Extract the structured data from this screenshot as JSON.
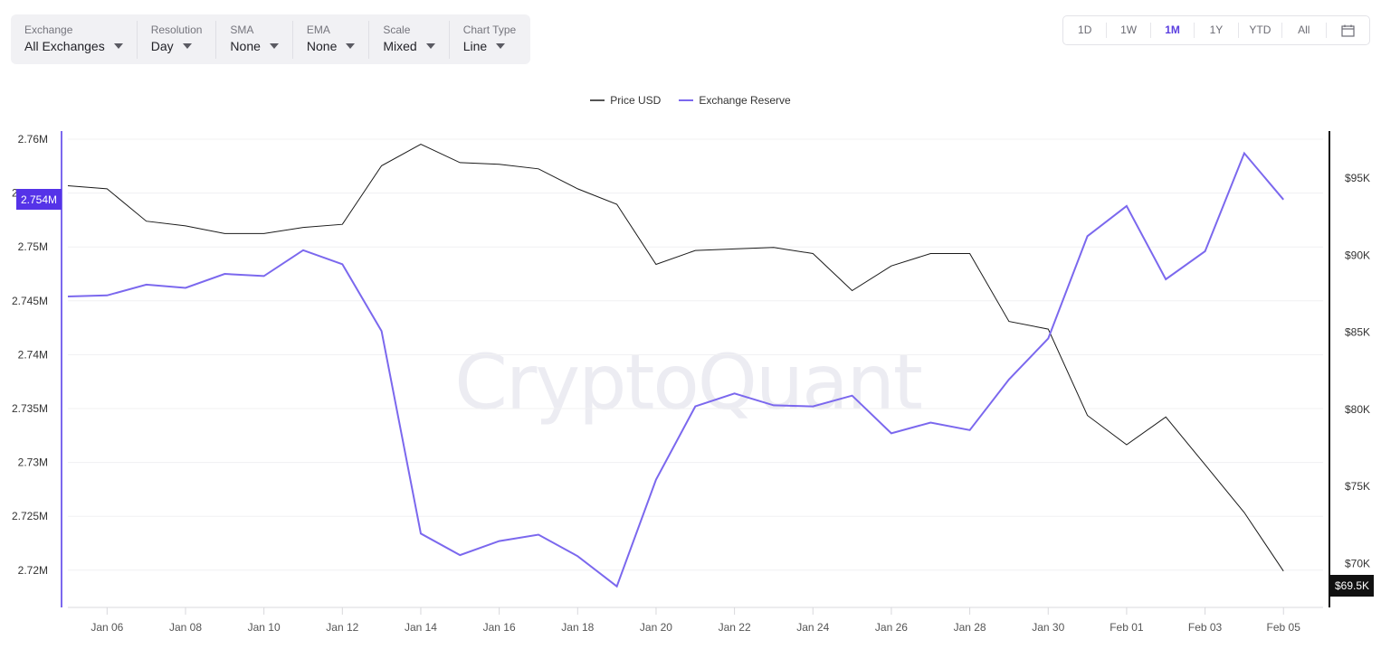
{
  "toolbar": {
    "filters": [
      {
        "label": "Exchange",
        "value": "All Exchanges"
      },
      {
        "label": "Resolution",
        "value": "Day"
      },
      {
        "label": "SMA",
        "value": "None"
      },
      {
        "label": "EMA",
        "value": "None"
      },
      {
        "label": "Scale",
        "value": "Mixed"
      },
      {
        "label": "Chart Type",
        "value": "Line"
      }
    ]
  },
  "range": {
    "options": [
      "1D",
      "1W",
      "1M",
      "1Y",
      "YTD",
      "All"
    ],
    "active": "1M",
    "calendar_icon": "calendar-icon"
  },
  "legend": {
    "price": "Price USD",
    "reserve": "Exchange Reserve"
  },
  "watermark": "CryptoQuant",
  "colors": {
    "reserve": "#7b68ee",
    "price": "#1a1a1a",
    "active_accent": "#5b3fe0",
    "reserve_badge": "#5533e8",
    "price_badge": "#111111"
  },
  "badges": {
    "reserve_current": "2.754M",
    "price_current": "$69.5K"
  },
  "chart_data": {
    "type": "line",
    "title": "",
    "legend_position": "top-center",
    "grid": true,
    "x": [
      "Jan 05",
      "Jan 06",
      "Jan 07",
      "Jan 08",
      "Jan 09",
      "Jan 10",
      "Jan 11",
      "Jan 12",
      "Jan 13",
      "Jan 14",
      "Jan 15",
      "Jan 16",
      "Jan 17",
      "Jan 18",
      "Jan 19",
      "Jan 20",
      "Jan 21",
      "Jan 22",
      "Jan 23",
      "Jan 24",
      "Jan 25",
      "Jan 26",
      "Jan 27",
      "Jan 28",
      "Jan 29",
      "Jan 30",
      "Jan 31",
      "Feb 01",
      "Feb 02",
      "Feb 03",
      "Feb 04",
      "Feb 05"
    ],
    "x_ticks": [
      "Jan 06",
      "Jan 08",
      "Jan 10",
      "Jan 12",
      "Jan 14",
      "Jan 16",
      "Jan 18",
      "Jan 20",
      "Jan 22",
      "Jan 24",
      "Jan 26",
      "Jan 28",
      "Jan 30",
      "Feb 01",
      "Feb 03",
      "Feb 05"
    ],
    "y_left": {
      "label": "Exchange Reserve",
      "ticks": [
        "2.76M",
        "2.755M",
        "2.75M",
        "2.745M",
        "2.74M",
        "2.735M",
        "2.73M",
        "2.725M",
        "2.72M"
      ],
      "range": [
        2.7166,
        2.76
      ]
    },
    "y_right": {
      "label": "Price USD",
      "ticks": [
        "$95K",
        "$90K",
        "$85K",
        "$80K",
        "$75K",
        "$70K"
      ],
      "range": [
        69.5,
        97.5
      ]
    },
    "series": [
      {
        "name": "Exchange Reserve",
        "axis": "left",
        "unit": "M BTC",
        "values": [
          2.7454,
          2.7455,
          2.7465,
          2.7462,
          2.7475,
          2.7473,
          2.7497,
          2.7484,
          2.7422,
          2.7234,
          2.7214,
          2.7227,
          2.7233,
          2.7213,
          2.7185,
          2.7284,
          2.7352,
          2.7364,
          2.7353,
          2.7352,
          2.7362,
          2.7327,
          2.7337,
          2.733,
          2.7377,
          2.7415,
          2.751,
          2.7538,
          2.747,
          2.7496,
          2.7587,
          2.7544
        ]
      },
      {
        "name": "Price USD",
        "axis": "right",
        "unit": "K USD",
        "values": [
          94.5,
          94.3,
          92.2,
          91.9,
          91.4,
          91.4,
          91.8,
          92.0,
          95.8,
          97.2,
          96.0,
          95.9,
          95.6,
          94.3,
          93.3,
          89.4,
          90.3,
          90.4,
          90.5,
          90.1,
          87.7,
          89.3,
          90.1,
          90.1,
          85.7,
          85.2,
          79.6,
          77.7,
          79.5,
          76.4,
          73.3,
          69.5
        ]
      }
    ]
  }
}
